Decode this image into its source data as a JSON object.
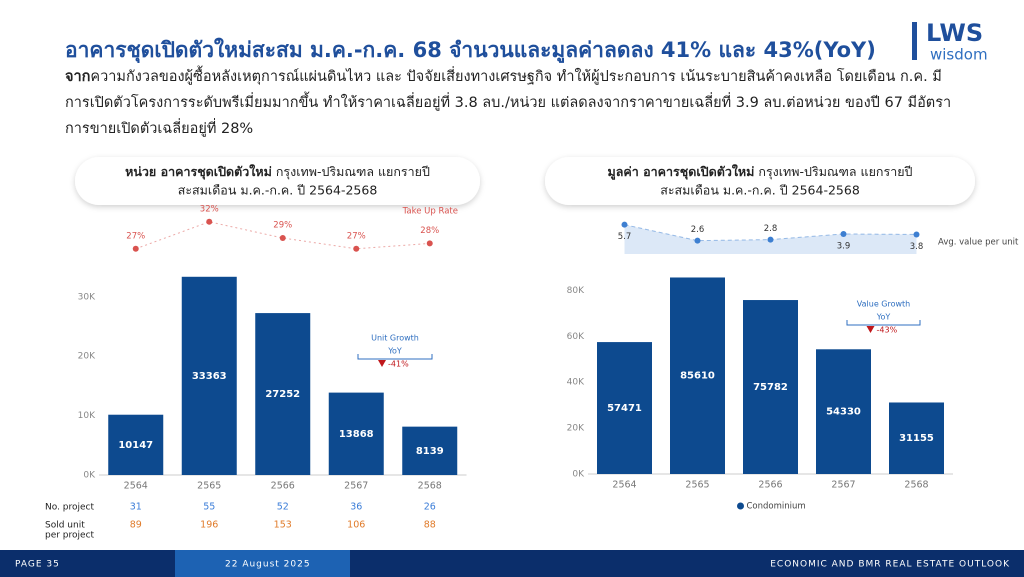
{
  "header": {
    "title": "อาคารชุดเปิดตัวใหม่สะสม ม.ค.-ก.ค. 68 จำนวนและมูลค่าลดลง 41% และ 43%(YoY)",
    "body_lead": "จาก",
    "body": "ความกังวลของผู้ซื้อหลังเหตุการณ์แผ่นดินไหว และ ปัจจัยเสี่ยงทางเศรษฐกิจ ทำให้ผู้ประกอบการ เน้นระบายสินค้าคงเหลือ โดยเดือน ก.ค. มีการเปิดตัวโครงการระดับพรีเมี่ยมมากขึ้น ทำให้ราคาเฉลี่ยอยู่ที่ 3.8 ลบ./หน่วย แต่ลดลงจากราคาขายเฉลี่ยที่ 3.9 ลบ.ต่อหน่วย ของปี 67 มีอัตราการขายเปิดตัวเฉลี่ยอยู่ที่ 28%"
  },
  "logo": {
    "brand": "LWS",
    "sub": "wisdom"
  },
  "footer": {
    "page": "PAGE 35",
    "date": "22 August 2025",
    "report": "ECONOMIC AND BMR REAL ESTATE OUTLOOK"
  },
  "chart_data": [
    {
      "type": "bar",
      "title_bold": "หน่วย อาคารชุดเปิดตัวใหม่",
      "title": " กรุงเทพ-ปริมณฑล แยกรายปี",
      "subtitle": "สะสมเดือน ม.ค.-ก.ค. ปี 2564-2568",
      "categories": [
        "2564",
        "2565",
        "2566",
        "2567",
        "2568"
      ],
      "series": [
        {
          "color": "#0d4a8f",
          "values": [
            10147,
            33363,
            27252,
            13868,
            8139
          ]
        },
        {
          "name": "Take Up Rate",
          "axis": "y2",
          "color": "#d9534f",
          "values": [
            27,
            32,
            29,
            27,
            28
          ],
          "value_labels": [
            "27%",
            "32%",
            "29%",
            "27%",
            "28%"
          ]
        }
      ],
      "ylim": [
        0,
        34000
      ],
      "yticks": [
        {
          "value": 0,
          "label": "0K"
        },
        {
          "value": 10000,
          "label": "10K"
        },
        {
          "value": 20000,
          "label": "20K"
        },
        {
          "value": 30000,
          "label": "30K"
        }
      ],
      "y2lim": [
        24,
        34
      ],
      "grid": false,
      "annotation": {
        "title": "Unit Growth",
        "period": "YoY",
        "change": "-41%"
      },
      "table": {
        "rows": [
          {
            "label_lines": [
              "No. project"
            ],
            "color": "#3b7dd8",
            "values": [
              31,
              55,
              52,
              36,
              26
            ]
          },
          {
            "label_lines": [
              "Sold unit",
              "per project"
            ],
            "color": "#e07b2a",
            "values": [
              89,
              196,
              153,
              106,
              88
            ]
          }
        ]
      }
    },
    {
      "type": "bar",
      "title_bold": "มูลค่า อาคารชุดเปิดตัวใหม่",
      "title": " กรุงเทพ-ปริมณฑล แยกรายปี",
      "subtitle": "สะสมเดือน ม.ค.-ก.ค. ปี 2564-2568",
      "categories": [
        "2564",
        "2565",
        "2566",
        "2567",
        "2568"
      ],
      "series": [
        {
          "name": "Condominium",
          "color": "#0d4a8f",
          "values": [
            57471,
            85610,
            75782,
            54330,
            31155
          ]
        },
        {
          "name": "Avg. value per unit",
          "axis": "y2",
          "color": "#3d7fd1",
          "area": true,
          "values": [
            5.7,
            2.6,
            2.8,
            3.9,
            3.8
          ]
        }
      ],
      "ylim": [
        0,
        88000
      ],
      "yticks": [
        {
          "value": 0,
          "label": "0K"
        },
        {
          "value": 20000,
          "label": "20K"
        },
        {
          "value": 40000,
          "label": "40K"
        },
        {
          "value": 60000,
          "label": "60K"
        },
        {
          "value": 80000,
          "label": "80K"
        }
      ],
      "y2lim": [
        0,
        7
      ],
      "grid": false,
      "annotation": {
        "title": "Value Growth",
        "period": "YoY",
        "change": "-43%"
      }
    }
  ]
}
